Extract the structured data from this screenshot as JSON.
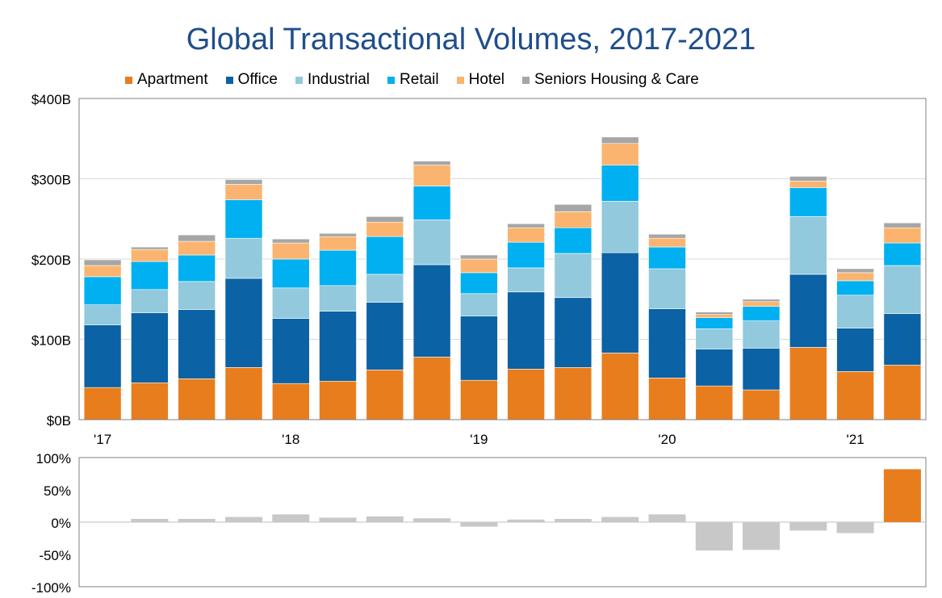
{
  "chart_data": [
    {
      "type": "bar",
      "stacked": true,
      "title": "Global Transactional Volumes, 2017-2021",
      "categories": [
        "Q1 2017",
        "Q2 2017",
        "Q3 2017",
        "Q4 2017",
        "Q1 2018",
        "Q2 2018",
        "Q3 2018",
        "Q4 2018",
        "Q1 2019",
        "Q2 2019",
        "Q3 2019",
        "Q4 2019",
        "Q1 2020",
        "Q2 2020",
        "Q3 2020",
        "Q4 2020",
        "Q1 2021",
        "Q2 2021"
      ],
      "x_tick_labels": [
        {
          "category": "Q1 2017",
          "label": "'17"
        },
        {
          "category": "Q1 2018",
          "label": "'18"
        },
        {
          "category": "Q1 2019",
          "label": "'19"
        },
        {
          "category": "Q1 2020",
          "label": "'20"
        },
        {
          "category": "Q1 2021",
          "label": "'21"
        }
      ],
      "y_ticks": [
        {
          "value": 0,
          "label": "$0B"
        },
        {
          "value": 100,
          "label": "$100B"
        },
        {
          "value": 200,
          "label": "$200B"
        },
        {
          "value": 300,
          "label": "$300B"
        },
        {
          "value": 400,
          "label": "$400B"
        }
      ],
      "ylim": [
        0,
        400
      ],
      "grid": true,
      "legend_position": "top",
      "series": [
        {
          "name": "Apartment",
          "color": "#e87d1e",
          "values": [
            40,
            46,
            51,
            65,
            45,
            48,
            62,
            78,
            49,
            63,
            65,
            83,
            52,
            42,
            37,
            90,
            60,
            68
          ]
        },
        {
          "name": "Office",
          "color": "#0b62a4",
          "values": [
            78,
            87,
            86,
            111,
            81,
            87,
            84,
            115,
            80,
            96,
            87,
            125,
            86,
            46,
            52,
            91,
            54,
            64
          ]
        },
        {
          "name": "Industrial",
          "color": "#92c9dc",
          "values": [
            25,
            29,
            35,
            50,
            38,
            32,
            35,
            56,
            28,
            30,
            55,
            64,
            50,
            25,
            34,
            72,
            41,
            60
          ]
        },
        {
          "name": "Retail",
          "color": "#00b0f0",
          "values": [
            35,
            35,
            33,
            48,
            36,
            44,
            47,
            42,
            26,
            32,
            32,
            45,
            27,
            14,
            18,
            36,
            18,
            28
          ]
        },
        {
          "name": "Hotel",
          "color": "#fbb46f",
          "values": [
            14,
            15,
            17,
            19,
            20,
            17,
            18,
            26,
            17,
            18,
            20,
            27,
            11,
            4,
            6,
            8,
            10,
            19
          ]
        },
        {
          "name": "Seniors Housing & Care",
          "color": "#a6a6a6",
          "values": [
            7,
            3,
            8,
            6,
            5,
            4,
            7,
            5,
            5,
            5,
            9,
            8,
            5,
            3,
            3,
            6,
            5,
            6
          ]
        }
      ]
    },
    {
      "type": "bar",
      "categories": [
        "Q1 2017",
        "Q2 2017",
        "Q3 2017",
        "Q4 2017",
        "Q1 2018",
        "Q2 2018",
        "Q3 2018",
        "Q4 2018",
        "Q1 2019",
        "Q2 2019",
        "Q3 2019",
        "Q4 2019",
        "Q1 2020",
        "Q2 2020",
        "Q3 2020",
        "Q4 2020",
        "Q1 2021",
        "Q2 2021"
      ],
      "values": [
        null,
        5,
        5,
        8,
        12,
        7,
        9,
        6,
        -7,
        4,
        5,
        8,
        12,
        -44,
        -43,
        -13,
        -17,
        82
      ],
      "colors": {
        "default": "#c8c8c8",
        "highlight": "#e87d1e",
        "highlight_category": "Q2 2021"
      },
      "y_ticks": [
        {
          "value": -100,
          "label": "-100%"
        },
        {
          "value": -50,
          "label": "-50%"
        },
        {
          "value": 0,
          "label": "0%"
        },
        {
          "value": 50,
          "label": "50%"
        },
        {
          "value": 100,
          "label": "100%"
        }
      ],
      "ylim": [
        -100,
        100
      ],
      "grid": false
    }
  ]
}
